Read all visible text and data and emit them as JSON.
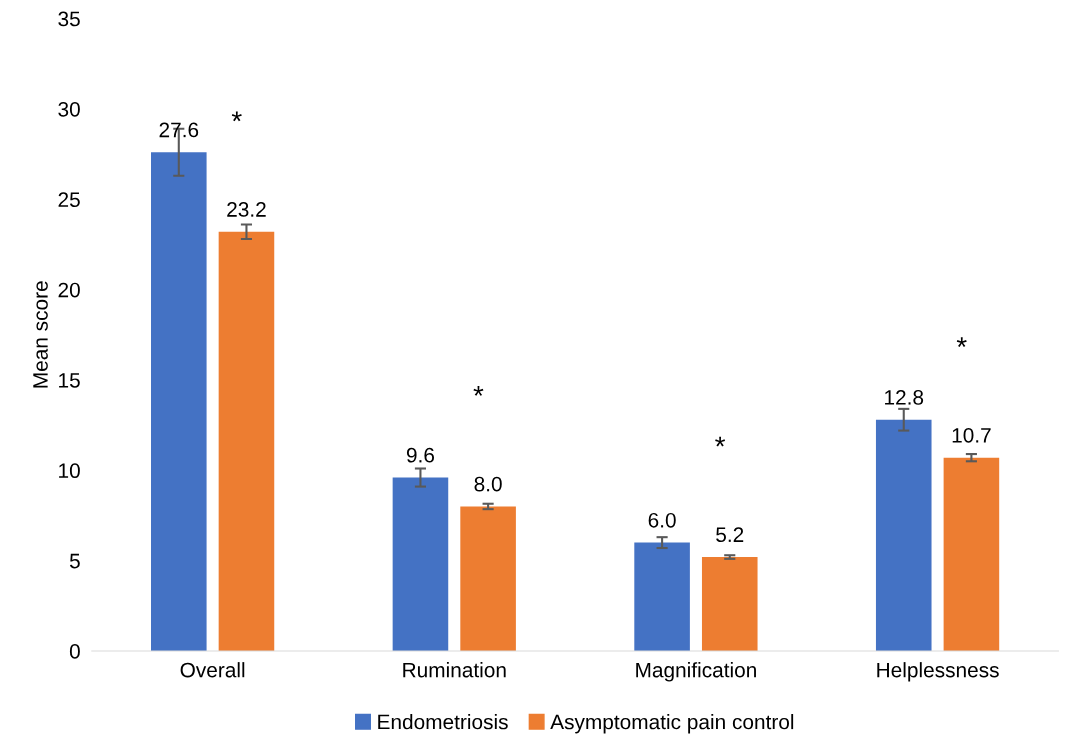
{
  "chart_data": {
    "type": "bar",
    "ylabel": "Mean score",
    "categories": [
      "Overall",
      "Rumination",
      "Magnification",
      "Helplessness"
    ],
    "series": [
      {
        "name": "Endometriosis",
        "color": "#4472c4",
        "values": [
          27.6,
          9.6,
          6.0,
          12.8
        ],
        "errors": [
          1.3,
          0.5,
          0.3,
          0.6
        ],
        "value_labels": [
          "27.6",
          "9.6",
          "6.0",
          "12.8"
        ]
      },
      {
        "name": "Asymptomatic pain control",
        "color": "#ed7d31",
        "values": [
          23.2,
          8.0,
          5.2,
          10.7
        ],
        "errors": [
          0.4,
          0.15,
          0.1,
          0.2
        ],
        "value_labels": [
          "23.2",
          "8.0",
          "5.2",
          "10.7"
        ]
      }
    ],
    "ylim": [
      0,
      35
    ],
    "yticks": [
      0,
      5,
      10,
      15,
      20,
      25,
      30,
      35
    ],
    "grid": false,
    "legend": "bottom",
    "annotations": [
      "*",
      "*",
      "*",
      "*"
    ]
  }
}
